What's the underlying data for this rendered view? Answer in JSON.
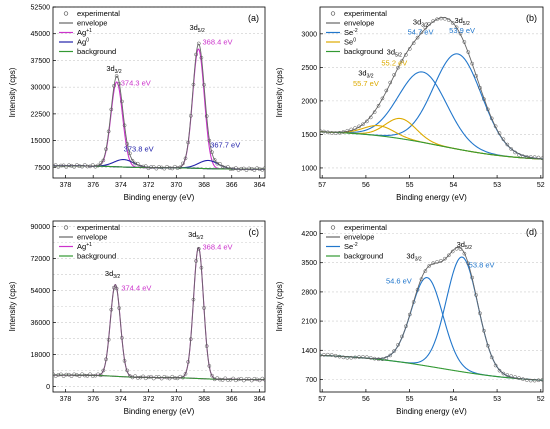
{
  "chart_data": [
    {
      "panel": "(a)",
      "type": "line",
      "xlabel": "Binding energy (eV)",
      "ylabel": "Intensity (cps)",
      "xlim": [
        378.9,
        363.6
      ],
      "ylim": [
        4500,
        52500
      ],
      "xticks": [
        378,
        376,
        374,
        372,
        370,
        368,
        366,
        364
      ],
      "yticks": [
        7500,
        15000,
        22500,
        30000,
        37500,
        45000,
        52500
      ],
      "yticks_grid": [
        7500,
        15000,
        22500,
        30000,
        37500,
        45000,
        52500
      ],
      "yticks_unlabeled": [],
      "legend_position": "top-left",
      "legend": [
        {
          "label": "experimental",
          "color": "#555555",
          "style": "circle"
        },
        {
          "label": "envelope",
          "color": "#666666",
          "style": "line"
        },
        {
          "label": "Ag",
          "sup": "+1",
          "color": "#cc33cc",
          "style": "line"
        },
        {
          "label": "Ag",
          "sup": "0",
          "color": "#2222aa",
          "style": "line"
        },
        {
          "label": "background",
          "color": "#339933",
          "style": "line"
        }
      ],
      "background": {
        "type": "step",
        "low": 7000,
        "high": 7900,
        "center1": 374.3,
        "center2": 368.4
      },
      "components": [
        {
          "name": "Ag+1 3d3/2",
          "center": 374.3,
          "height": 23800,
          "width": 0.42,
          "color": "#cc33cc"
        },
        {
          "name": "Ag+1 3d5/2",
          "center": 368.4,
          "height": 33500,
          "width": 0.42,
          "color": "#cc33cc"
        },
        {
          "name": "Ag0 3d3/2",
          "center": 373.8,
          "height": 2100,
          "width": 0.7,
          "color": "#2222aa"
        },
        {
          "name": "Ag0 3d5/2",
          "center": 367.7,
          "height": 2300,
          "width": 0.7,
          "color": "#2222aa"
        }
      ],
      "annotations": [
        {
          "text": "374.3 eV",
          "x": 374.3,
          "y": 30500,
          "color": "#cc33cc",
          "anchor": "start",
          "dx": 4
        },
        {
          "text": "368.4 eV",
          "x": 368.4,
          "y": 42000,
          "color": "#cc33cc",
          "anchor": "start",
          "dx": 4
        },
        {
          "text": "373.8 eV",
          "x": 373.8,
          "y": 12000,
          "color": "#2222aa",
          "anchor": "start",
          "dx": 0
        },
        {
          "text": "367.7 eV",
          "x": 367.7,
          "y": 13000,
          "color": "#2222aa",
          "anchor": "start",
          "dx": 2
        }
      ],
      "orbital_labels": [
        {
          "main": "3d",
          "sub": "3/2",
          "x": 374.5,
          "y": 34500
        },
        {
          "main": "3d",
          "sub": "5/2",
          "x": 368.5,
          "y": 46000
        }
      ]
    },
    {
      "panel": "(b)",
      "type": "line",
      "xlabel": "Binding energy (eV)",
      "ylabel": "Intensity (cps)",
      "xlim": [
        57.05,
        51.95
      ],
      "ylim": [
        850,
        3400
      ],
      "xticks": [
        57,
        56,
        55,
        54,
        53,
        52
      ],
      "yticks": [
        1000,
        1500,
        2000,
        2500,
        3000
      ],
      "yticks_grid": [
        1000,
        1500,
        2000,
        2500,
        3000
      ],
      "yticks_unlabeled": [],
      "legend_position": "top-left",
      "legend": [
        {
          "label": "experimental",
          "color": "#555555",
          "style": "circle"
        },
        {
          "label": "envelope",
          "color": "#666666",
          "style": "line"
        },
        {
          "label": "Se",
          "sup": "-2",
          "color": "#2277cc",
          "style": "line"
        },
        {
          "label": "Se",
          "sup": "0",
          "color": "#ddaa00",
          "style": "line"
        },
        {
          "label": "background",
          "color": "#339933",
          "style": "line"
        }
      ],
      "background": {
        "type": "step",
        "low": 1100,
        "high": 1560,
        "center1": 54.3,
        "center2": 54.3,
        "width": 0.9
      },
      "components": [
        {
          "name": "Se-2 3d5/2",
          "center": 53.9,
          "height": 1420,
          "width": 0.55,
          "color": "#2277cc"
        },
        {
          "name": "Se-2 3d3/2",
          "center": 54.7,
          "height": 1050,
          "width": 0.55,
          "color": "#2277cc"
        },
        {
          "name": "Se0 3d5/2",
          "center": 55.2,
          "height": 300,
          "width": 0.35,
          "color": "#ddaa00"
        },
        {
          "name": "Se0 3d3/2",
          "center": 55.7,
          "height": 150,
          "width": 0.35,
          "color": "#ddaa00"
        }
      ],
      "annotations": [
        {
          "text": "53.9 eV",
          "x": 53.8,
          "y": 3010,
          "color": "#2277cc",
          "anchor": "middle",
          "dx": 0
        },
        {
          "text": "54.7 eV",
          "x": 54.75,
          "y": 2990,
          "color": "#2277cc",
          "anchor": "middle",
          "dx": 0
        },
        {
          "text": "55.2 eV",
          "x": 55.35,
          "y": 2530,
          "color": "#ddaa00",
          "anchor": "middle",
          "dx": 0
        },
        {
          "text": "55.7 eV",
          "x": 56.0,
          "y": 2220,
          "color": "#ddaa00",
          "anchor": "middle",
          "dx": 0
        }
      ],
      "orbital_labels": [
        {
          "main": "3d",
          "sub": "5/2",
          "x": 53.8,
          "y": 3160
        },
        {
          "main": "3d",
          "sub": "3/2",
          "x": 54.75,
          "y": 3140
        },
        {
          "main": "3d",
          "sub": "5/2",
          "x": 55.35,
          "y": 2690
        },
        {
          "main": "3d",
          "sub": "3/2",
          "x": 56.0,
          "y": 2380
        }
      ]
    },
    {
      "panel": "(c)",
      "type": "line",
      "xlabel": "Binding energy (eV)",
      "ylabel": "Intensity (cps)",
      "xlim": [
        378.9,
        363.6
      ],
      "ylim": [
        -3000,
        93000
      ],
      "xticks": [
        378,
        376,
        374,
        372,
        370,
        368,
        366,
        364
      ],
      "yticks": [
        0,
        18000,
        36000,
        54000,
        72000,
        90000
      ],
      "yticks_grid": [
        0,
        9000,
        18000,
        27000,
        36000,
        45000,
        54000,
        63000,
        72000,
        81000,
        90000
      ],
      "yticks_unlabeled": [],
      "legend_position": "top-left",
      "legend": [
        {
          "label": "experimental",
          "color": "#555555",
          "style": "circle"
        },
        {
          "label": "envelope",
          "color": "#666666",
          "style": "line"
        },
        {
          "label": "Ag",
          "sup": "+1",
          "color": "#cc33cc",
          "style": "line"
        },
        {
          "label": "background",
          "color": "#339933",
          "style": "line"
        }
      ],
      "background": {
        "type": "step",
        "low": 4000,
        "high": 6500,
        "center1": 374.4,
        "center2": 368.4
      },
      "components": [
        {
          "name": "Ag+1 3d3/2",
          "center": 374.4,
          "height": 51500,
          "width": 0.36,
          "color": "#cc33cc"
        },
        {
          "name": "Ag+1 3d5/2",
          "center": 368.4,
          "height": 73500,
          "width": 0.36,
          "color": "#cc33cc"
        }
      ],
      "annotations": [
        {
          "text": "374.4 eV",
          "x": 374.4,
          "y": 54000,
          "color": "#cc33cc",
          "anchor": "start",
          "dx": 6
        },
        {
          "text": "368.4 eV",
          "x": 368.4,
          "y": 77000,
          "color": "#cc33cc",
          "anchor": "start",
          "dx": 4
        }
      ],
      "orbital_labels": [
        {
          "main": "3d",
          "sub": "3/2",
          "x": 374.6,
          "y": 62000
        },
        {
          "main": "3d",
          "sub": "5/2",
          "x": 368.6,
          "y": 84000
        }
      ]
    },
    {
      "panel": "(d)",
      "type": "line",
      "xlabel": "Binding energy (eV)",
      "ylabel": "Intensity (cps)",
      "xlim": [
        57.05,
        51.95
      ],
      "ylim": [
        400,
        4500
      ],
      "xticks": [
        57,
        56,
        55,
        54,
        53,
        52
      ],
      "yticks": [
        700,
        1400,
        2100,
        2800,
        3500,
        4200
      ],
      "yticks_grid": [
        700,
        1400,
        2100,
        2800,
        3500,
        4200
      ],
      "yticks_unlabeled": [],
      "legend_position": "top-left",
      "legend": [
        {
          "label": "experimental",
          "color": "#555555",
          "style": "circle"
        },
        {
          "label": "envelope",
          "color": "#666666",
          "style": "line"
        },
        {
          "label": "Se",
          "sup": "-2",
          "color": "#2277cc",
          "style": "line"
        },
        {
          "label": "background",
          "color": "#339933",
          "style": "line"
        }
      ],
      "background": {
        "type": "step",
        "low": 620,
        "high": 1320,
        "center1": 54.3,
        "center2": 54.3,
        "width": 1.0
      },
      "components": [
        {
          "name": "Se-2 3d5/2",
          "center": 53.8,
          "height": 2750,
          "width": 0.36,
          "color": "#2277cc"
        },
        {
          "name": "Se-2 3d3/2",
          "center": 54.6,
          "height": 2120,
          "width": 0.36,
          "color": "#2277cc"
        }
      ],
      "annotations": [
        {
          "text": "54.6 eV",
          "x": 54.95,
          "y": 3000,
          "color": "#2277cc",
          "anchor": "end",
          "dx": 0
        },
        {
          "text": "53.8 eV",
          "x": 53.65,
          "y": 3380,
          "color": "#2277cc",
          "anchor": "start",
          "dx": 0
        }
      ],
      "orbital_labels": [
        {
          "main": "3d",
          "sub": "3/2",
          "x": 54.9,
          "y": 3600
        },
        {
          "main": "3d",
          "sub": "5/2",
          "x": 53.75,
          "y": 3880
        }
      ]
    }
  ]
}
